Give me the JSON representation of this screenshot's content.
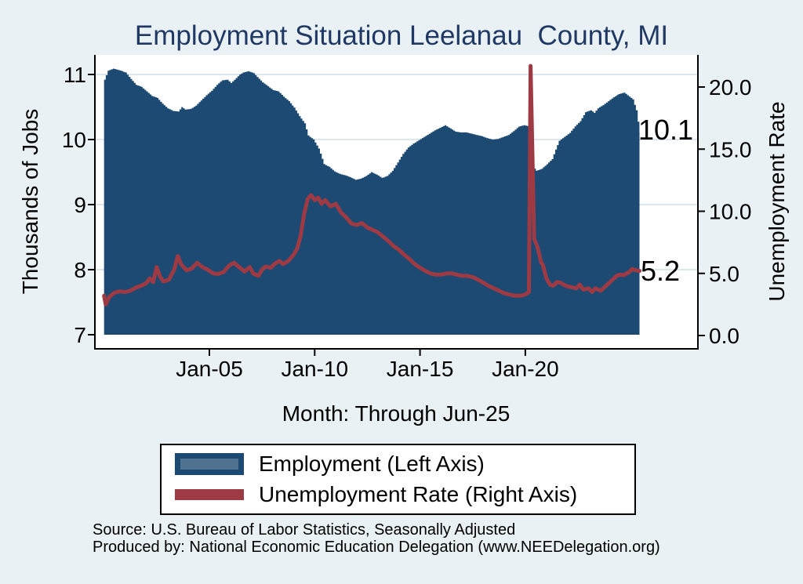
{
  "title": "Employment Situation Leelanau  County, MI",
  "colors": {
    "background": "#e9f1f4",
    "plot_background": "#ffffff",
    "employment_fill": "#1c4a73",
    "legend_area_inner": "#50718f",
    "unemployment_line": "#9e3a43",
    "title_text": "#1f3864",
    "gridline": "#dbe8ef",
    "axis": "#000000"
  },
  "legend": {
    "items": [
      {
        "label": "Employment (Left Axis)",
        "swatch": "area"
      },
      {
        "label": "Unemployment Rate (Right Axis)",
        "swatch": "line"
      }
    ]
  },
  "footer": {
    "source": "Source: U.S. Bureau of Labor Statistics, Seasonally Adjusted",
    "produced_by": "Produced by: National Economic Education Delegation (www.NEEDelegation.org)"
  },
  "chart_data": {
    "type": "area+line",
    "title": "Employment Situation Leelanau  County, MI",
    "grid": "on",
    "legend_position": "bottom",
    "x_axis": {
      "title": "Month: Through Jun-25",
      "range_years": [
        2000.0,
        2025.42
      ],
      "ticks": [
        {
          "t": 2005,
          "label": "Jan-05"
        },
        {
          "t": 2010,
          "label": "Jan-10"
        },
        {
          "t": 2015,
          "label": "Jan-15"
        },
        {
          "t": 2020,
          "label": "Jan-20"
        }
      ]
    },
    "left_axis": {
      "title": "Thousands of Jobs",
      "range": [
        7,
        11
      ],
      "ticks": [
        {
          "v": 7,
          "label": "7"
        },
        {
          "v": 8,
          "label": "8"
        },
        {
          "v": 9,
          "label": "9"
        },
        {
          "v": 10,
          "label": "10"
        },
        {
          "v": 11,
          "label": "11"
        }
      ]
    },
    "right_axis": {
      "title": "Unemployment Rate",
      "range": [
        0,
        20
      ],
      "ticks": [
        {
          "v": 0,
          "label": "0.0"
        },
        {
          "v": 5,
          "label": "5.0"
        },
        {
          "v": 10,
          "label": "10.0"
        },
        {
          "v": 15,
          "label": "15.0"
        },
        {
          "v": 20,
          "label": "20.0"
        }
      ]
    },
    "annotations": [
      {
        "text": "10.1",
        "series": "Employment (Left Axis)",
        "at": "Jun-25"
      },
      {
        "text": "5.2",
        "series": "Unemployment Rate (Right Axis)",
        "at": "Jun-25"
      }
    ],
    "series": [
      {
        "name": "Employment (Left Axis)",
        "axis": "left",
        "style": "step-area",
        "points": [
          [
            2000.0,
            10.92
          ],
          [
            2000.17,
            11.06
          ],
          [
            2000.42,
            11.09
          ],
          [
            2000.75,
            11.06
          ],
          [
            2001.0,
            11.03
          ],
          [
            2001.25,
            10.93
          ],
          [
            2001.5,
            10.84
          ],
          [
            2001.75,
            10.81
          ],
          [
            2002.0,
            10.74
          ],
          [
            2002.25,
            10.67
          ],
          [
            2002.5,
            10.64
          ],
          [
            2002.75,
            10.55
          ],
          [
            2003.0,
            10.48
          ],
          [
            2003.25,
            10.44
          ],
          [
            2003.5,
            10.43
          ],
          [
            2003.67,
            10.5
          ],
          [
            2003.83,
            10.46
          ],
          [
            2004.08,
            10.47
          ],
          [
            2004.33,
            10.52
          ],
          [
            2004.58,
            10.6
          ],
          [
            2004.83,
            10.68
          ],
          [
            2005.08,
            10.75
          ],
          [
            2005.33,
            10.84
          ],
          [
            2005.58,
            10.91
          ],
          [
            2005.83,
            10.92
          ],
          [
            2006.0,
            10.87
          ],
          [
            2006.17,
            10.92
          ],
          [
            2006.42,
            11.0
          ],
          [
            2006.58,
            11.03
          ],
          [
            2006.83,
            11.05
          ],
          [
            2007.08,
            11.02
          ],
          [
            2007.25,
            10.96
          ],
          [
            2007.5,
            10.88
          ],
          [
            2007.75,
            10.82
          ],
          [
            2008.0,
            10.76
          ],
          [
            2008.25,
            10.74
          ],
          [
            2008.5,
            10.66
          ],
          [
            2008.75,
            10.59
          ],
          [
            2009.0,
            10.49
          ],
          [
            2009.25,
            10.36
          ],
          [
            2009.5,
            10.25
          ],
          [
            2009.67,
            10.06
          ],
          [
            2009.92,
            10.0
          ],
          [
            2010.17,
            9.86
          ],
          [
            2010.42,
            9.62
          ],
          [
            2010.67,
            9.58
          ],
          [
            2010.92,
            9.51
          ],
          [
            2011.17,
            9.47
          ],
          [
            2011.42,
            9.45
          ],
          [
            2011.67,
            9.42
          ],
          [
            2011.92,
            9.38
          ],
          [
            2012.17,
            9.4
          ],
          [
            2012.42,
            9.44
          ],
          [
            2012.67,
            9.5
          ],
          [
            2012.92,
            9.46
          ],
          [
            2013.17,
            9.41
          ],
          [
            2013.42,
            9.44
          ],
          [
            2013.67,
            9.52
          ],
          [
            2013.92,
            9.65
          ],
          [
            2014.17,
            9.78
          ],
          [
            2014.42,
            9.88
          ],
          [
            2014.67,
            9.94
          ],
          [
            2014.92,
            9.99
          ],
          [
            2015.17,
            10.04
          ],
          [
            2015.42,
            10.09
          ],
          [
            2015.67,
            10.14
          ],
          [
            2015.92,
            10.18
          ],
          [
            2016.17,
            10.22
          ],
          [
            2016.42,
            10.17
          ],
          [
            2016.67,
            10.12
          ],
          [
            2016.92,
            10.11
          ],
          [
            2017.17,
            10.11
          ],
          [
            2017.42,
            10.09
          ],
          [
            2017.67,
            10.07
          ],
          [
            2017.92,
            10.05
          ],
          [
            2018.17,
            10.02
          ],
          [
            2018.42,
            10.0
          ],
          [
            2018.67,
            10.01
          ],
          [
            2018.92,
            10.04
          ],
          [
            2019.17,
            10.07
          ],
          [
            2019.42,
            10.13
          ],
          [
            2019.67,
            10.2
          ],
          [
            2019.92,
            10.22
          ],
          [
            2020.17,
            10.2
          ],
          [
            2020.25,
            9.62
          ],
          [
            2020.5,
            9.52
          ],
          [
            2020.75,
            9.55
          ],
          [
            2021.0,
            9.62
          ],
          [
            2021.25,
            9.7
          ],
          [
            2021.42,
            9.85
          ],
          [
            2021.58,
            9.98
          ],
          [
            2021.83,
            10.04
          ],
          [
            2022.08,
            10.1
          ],
          [
            2022.33,
            10.2
          ],
          [
            2022.58,
            10.28
          ],
          [
            2022.83,
            10.42
          ],
          [
            2023.08,
            10.45
          ],
          [
            2023.25,
            10.41
          ],
          [
            2023.42,
            10.48
          ],
          [
            2023.67,
            10.53
          ],
          [
            2023.92,
            10.59
          ],
          [
            2024.17,
            10.65
          ],
          [
            2024.42,
            10.7
          ],
          [
            2024.67,
            10.72
          ],
          [
            2024.92,
            10.66
          ],
          [
            2025.08,
            10.62
          ],
          [
            2025.25,
            10.45
          ],
          [
            2025.33,
            10.28
          ],
          [
            2025.42,
            10.1
          ]
        ]
      },
      {
        "name": "Unemployment Rate (Right Axis)",
        "axis": "right",
        "style": "line",
        "points": [
          [
            2000.0,
            3.2
          ],
          [
            2000.08,
            2.5
          ],
          [
            2000.25,
            3.1
          ],
          [
            2000.5,
            3.45
          ],
          [
            2000.75,
            3.55
          ],
          [
            2001.0,
            3.5
          ],
          [
            2001.25,
            3.6
          ],
          [
            2001.5,
            3.85
          ],
          [
            2001.75,
            4.0
          ],
          [
            2002.0,
            4.2
          ],
          [
            2002.17,
            4.6
          ],
          [
            2002.33,
            4.3
          ],
          [
            2002.5,
            5.5
          ],
          [
            2002.67,
            4.7
          ],
          [
            2002.83,
            4.35
          ],
          [
            2003.08,
            4.5
          ],
          [
            2003.33,
            5.3
          ],
          [
            2003.5,
            6.4
          ],
          [
            2003.67,
            5.7
          ],
          [
            2003.92,
            5.25
          ],
          [
            2004.17,
            5.4
          ],
          [
            2004.42,
            5.85
          ],
          [
            2004.67,
            5.5
          ],
          [
            2004.92,
            5.3
          ],
          [
            2005.17,
            5.0
          ],
          [
            2005.42,
            4.95
          ],
          [
            2005.67,
            5.1
          ],
          [
            2005.92,
            5.6
          ],
          [
            2006.17,
            5.85
          ],
          [
            2006.42,
            5.5
          ],
          [
            2006.67,
            5.15
          ],
          [
            2006.92,
            5.5
          ],
          [
            2007.08,
            5.0
          ],
          [
            2007.33,
            4.8
          ],
          [
            2007.5,
            5.3
          ],
          [
            2007.67,
            5.55
          ],
          [
            2007.92,
            5.45
          ],
          [
            2008.08,
            5.75
          ],
          [
            2008.33,
            6.0
          ],
          [
            2008.5,
            5.75
          ],
          [
            2008.75,
            6.0
          ],
          [
            2009.0,
            6.5
          ],
          [
            2009.17,
            7.0
          ],
          [
            2009.33,
            8.0
          ],
          [
            2009.5,
            9.8
          ],
          [
            2009.67,
            11.0
          ],
          [
            2009.83,
            11.3
          ],
          [
            2010.0,
            10.9
          ],
          [
            2010.17,
            11.1
          ],
          [
            2010.33,
            10.6
          ],
          [
            2010.5,
            10.9
          ],
          [
            2010.75,
            10.4
          ],
          [
            2011.0,
            10.6
          ],
          [
            2011.25,
            9.9
          ],
          [
            2011.5,
            9.5
          ],
          [
            2011.75,
            9.0
          ],
          [
            2012.0,
            8.9
          ],
          [
            2012.25,
            9.05
          ],
          [
            2012.5,
            8.7
          ],
          [
            2012.75,
            8.5
          ],
          [
            2013.0,
            8.3
          ],
          [
            2013.25,
            7.95
          ],
          [
            2013.5,
            7.6
          ],
          [
            2013.75,
            7.2
          ],
          [
            2014.0,
            6.9
          ],
          [
            2014.25,
            6.5
          ],
          [
            2014.5,
            6.15
          ],
          [
            2014.75,
            5.75
          ],
          [
            2015.0,
            5.45
          ],
          [
            2015.25,
            5.2
          ],
          [
            2015.5,
            5.0
          ],
          [
            2015.75,
            4.9
          ],
          [
            2016.0,
            4.9
          ],
          [
            2016.25,
            5.0
          ],
          [
            2016.5,
            5.0
          ],
          [
            2016.75,
            4.9
          ],
          [
            2017.0,
            4.8
          ],
          [
            2017.25,
            4.8
          ],
          [
            2017.5,
            4.7
          ],
          [
            2017.75,
            4.5
          ],
          [
            2018.0,
            4.25
          ],
          [
            2018.25,
            4.0
          ],
          [
            2018.5,
            3.8
          ],
          [
            2018.75,
            3.6
          ],
          [
            2019.0,
            3.4
          ],
          [
            2019.25,
            3.3
          ],
          [
            2019.5,
            3.2
          ],
          [
            2019.75,
            3.2
          ],
          [
            2020.0,
            3.3
          ],
          [
            2020.17,
            3.5
          ],
          [
            2020.25,
            21.7
          ],
          [
            2020.42,
            7.8
          ],
          [
            2020.58,
            7.1
          ],
          [
            2020.75,
            5.9
          ],
          [
            2020.83,
            5.7
          ],
          [
            2021.0,
            4.6
          ],
          [
            2021.17,
            4.1
          ],
          [
            2021.33,
            4.0
          ],
          [
            2021.5,
            4.3
          ],
          [
            2021.67,
            4.25
          ],
          [
            2021.92,
            4.0
          ],
          [
            2022.17,
            3.9
          ],
          [
            2022.42,
            3.8
          ],
          [
            2022.58,
            4.1
          ],
          [
            2022.75,
            3.7
          ],
          [
            2023.0,
            3.8
          ],
          [
            2023.17,
            3.5
          ],
          [
            2023.33,
            3.8
          ],
          [
            2023.58,
            3.6
          ],
          [
            2023.83,
            4.0
          ],
          [
            2024.08,
            4.4
          ],
          [
            2024.33,
            4.8
          ],
          [
            2024.5,
            4.9
          ],
          [
            2024.67,
            4.85
          ],
          [
            2024.92,
            5.1
          ],
          [
            2025.08,
            5.35
          ],
          [
            2025.25,
            5.25
          ],
          [
            2025.42,
            5.2
          ]
        ]
      }
    ]
  }
}
